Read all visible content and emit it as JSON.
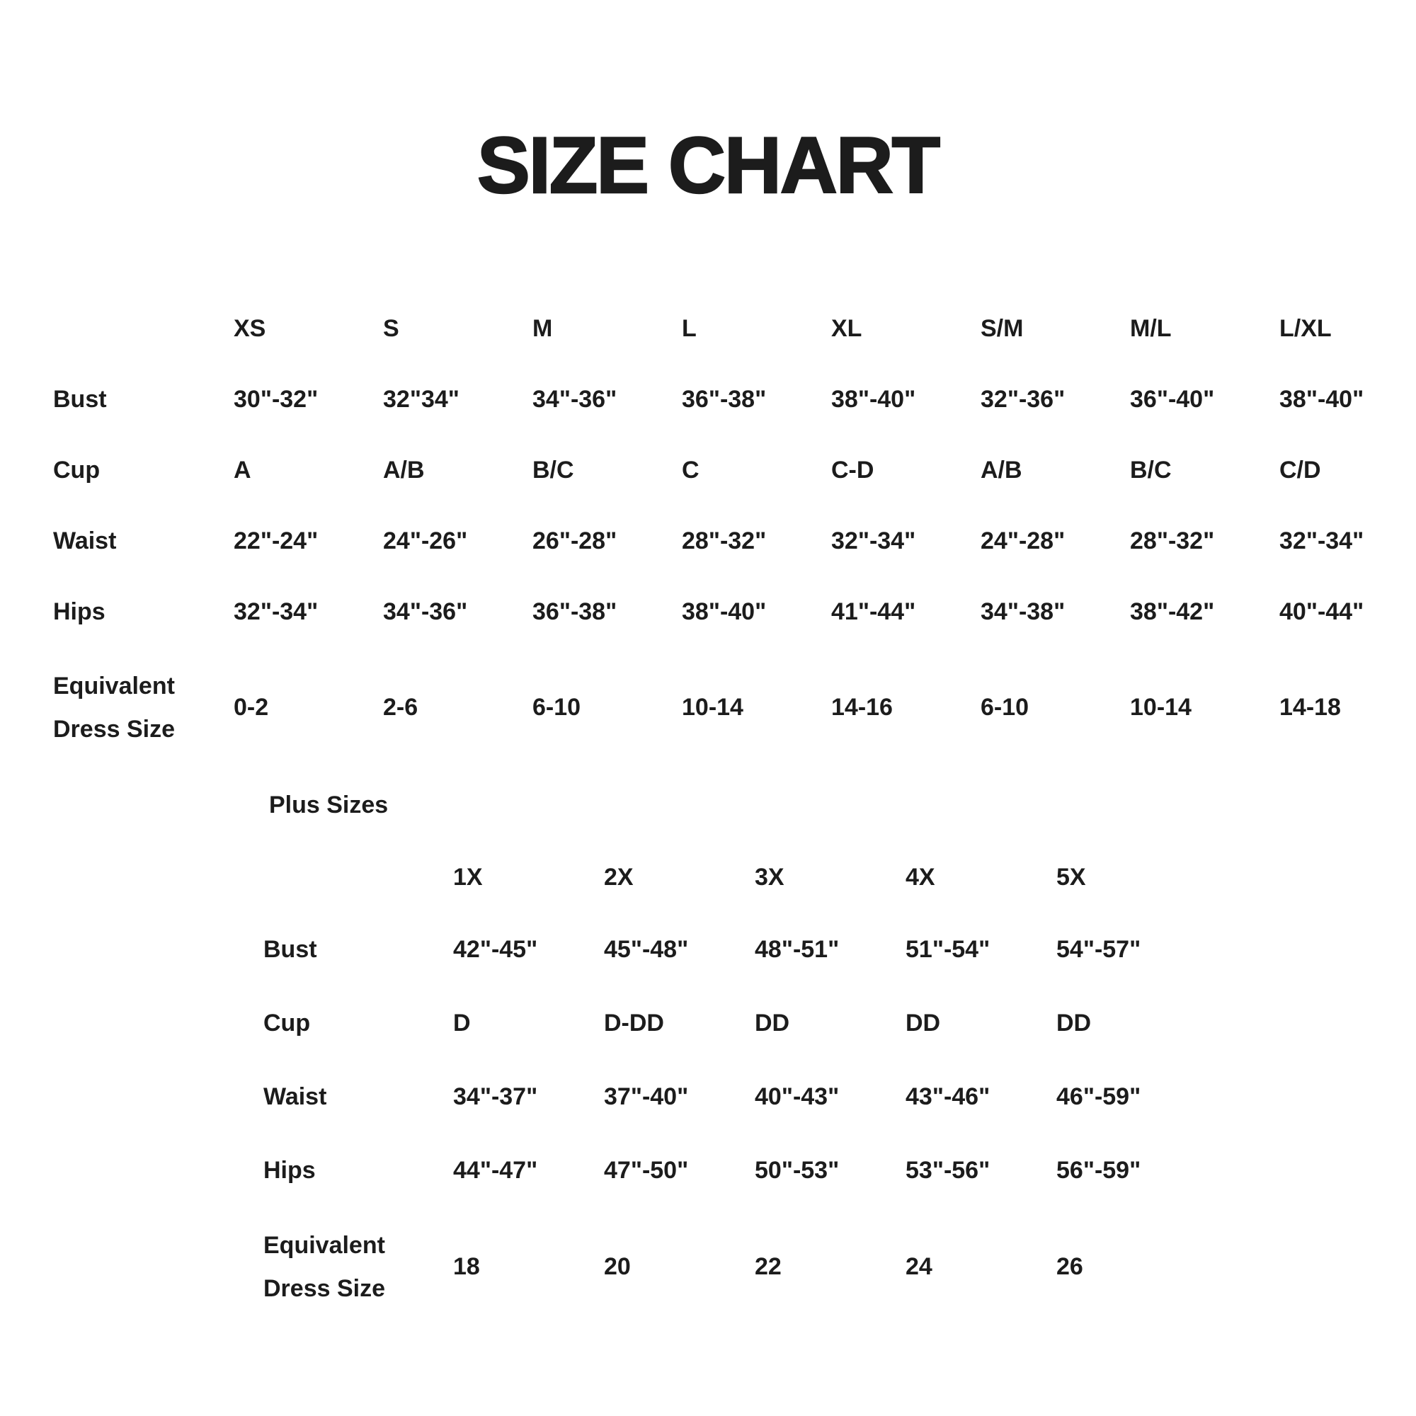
{
  "page_title": "SIZE CHART",
  "plus_heading": "Plus Sizes",
  "colors": {
    "background": "#ffffff",
    "text": "#1c1c1c"
  },
  "chart_data": [
    {
      "type": "table",
      "title": "SIZE CHART",
      "columns": [
        "",
        "XS",
        "S",
        "M",
        "L",
        "XL",
        "S/M",
        "M/L",
        "L/XL"
      ],
      "rows": [
        [
          "Bust",
          "30\"-32\"",
          "32\"34\"",
          "34\"-36\"",
          "36\"-38\"",
          "38\"-40\"",
          "32\"-36\"",
          "36\"-40\"",
          "38\"-40\""
        ],
        [
          "Cup",
          "A",
          "A/B",
          "B/C",
          "C",
          "C-D",
          "A/B",
          "B/C",
          "C/D"
        ],
        [
          "Waist",
          "22\"-24\"",
          "24\"-26\"",
          "26\"-28\"",
          "28\"-32\"",
          "32\"-34\"",
          "24\"-28\"",
          "28\"-32\"",
          "32\"-34\""
        ],
        [
          "Hips",
          "32\"-34\"",
          "34\"-36\"",
          "36\"-38\"",
          "38\"-40\"",
          "41\"-44\"",
          "34\"-38\"",
          "38\"-42\"",
          "40\"-44\""
        ],
        [
          "Equivalent Dress Size",
          "0-2",
          "2-6",
          "6-10",
          "10-14",
          "14-16",
          "6-10",
          "10-14",
          "14-18"
        ]
      ]
    },
    {
      "type": "table",
      "title": "Plus Sizes",
      "columns": [
        "",
        "1X",
        "2X",
        "3X",
        "4X",
        "5X"
      ],
      "rows": [
        [
          "Bust",
          "42\"-45\"",
          "45\"-48\"",
          "48\"-51\"",
          "51\"-54\"",
          "54\"-57\""
        ],
        [
          "Cup",
          "D",
          "D-DD",
          "DD",
          "DD",
          "DD"
        ],
        [
          "Waist",
          "34\"-37\"",
          "37\"-40\"",
          "40\"-43\"",
          "43\"-46\"",
          "46\"-59\""
        ],
        [
          "Hips",
          "44\"-47\"",
          "47\"-50\"",
          "50\"-53\"",
          "53\"-56\"",
          "56\"-59\""
        ],
        [
          "Equivalent Dress Size",
          "18",
          "20",
          "22",
          "24",
          "26"
        ]
      ]
    }
  ]
}
